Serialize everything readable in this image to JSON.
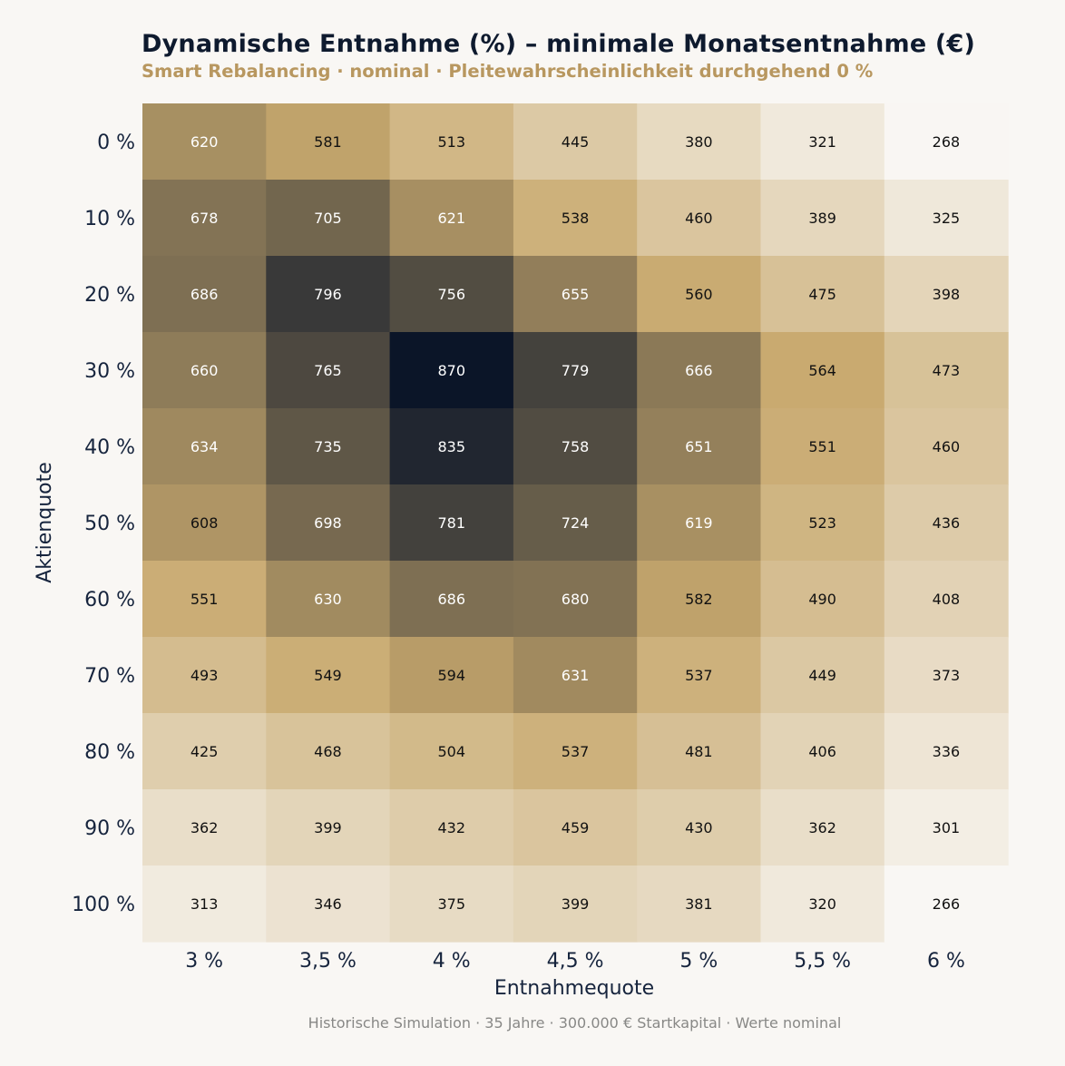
{
  "chart_data": {
    "type": "heatmap",
    "title": "Dynamische Entnahme (%) – minimale Monatsentnahme (€)",
    "subtitle": "Smart Rebalancing · nominal · Pleitewahrscheinlichkeit durchgehend 0 %",
    "xlabel": "Entnahmequote",
    "ylabel": "Aktienquote",
    "x_categories": [
      "3 %",
      "3,5 %",
      "4 %",
      "4,5 %",
      "5 %",
      "5,5 %",
      "6 %"
    ],
    "y_categories": [
      "0 %",
      "10 %",
      "20 %",
      "30 %",
      "40 %",
      "50 %",
      "60 %",
      "70 %",
      "80 %",
      "90 %",
      "100 %"
    ],
    "values": [
      [
        620,
        581,
        513,
        445,
        380,
        321,
        268
      ],
      [
        678,
        705,
        621,
        538,
        460,
        389,
        325
      ],
      [
        686,
        796,
        756,
        655,
        560,
        475,
        398
      ],
      [
        660,
        765,
        870,
        779,
        666,
        564,
        473
      ],
      [
        634,
        735,
        835,
        758,
        651,
        551,
        460
      ],
      [
        608,
        698,
        781,
        724,
        619,
        523,
        436
      ],
      [
        551,
        630,
        686,
        680,
        582,
        490,
        408
      ],
      [
        493,
        549,
        594,
        631,
        537,
        449,
        373
      ],
      [
        425,
        468,
        504,
        537,
        481,
        406,
        336
      ],
      [
        362,
        399,
        432,
        459,
        430,
        362,
        301
      ],
      [
        313,
        346,
        375,
        399,
        381,
        320,
        266
      ]
    ],
    "color_scale": [
      "#f9f7f4",
      "#c8a96e",
      "#0b1528"
    ],
    "colorbar": false,
    "grid": false,
    "footer": "Historische Simulation · 35 Jahre · 300.000 € Startkapital · Werte nominal"
  }
}
